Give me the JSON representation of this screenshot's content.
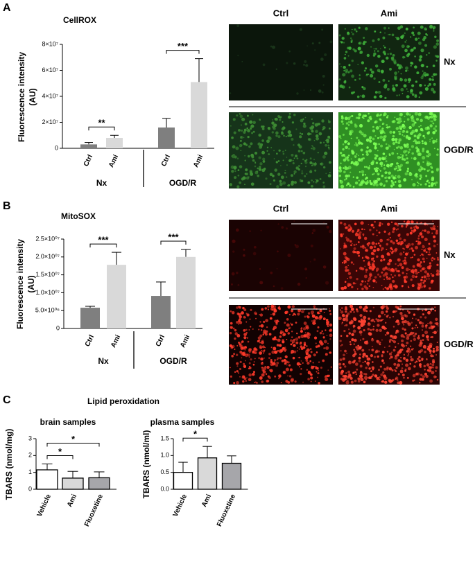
{
  "panel_labels": [
    "A",
    "B",
    "C"
  ],
  "images": [
    {
      "columns": [
        "Ctrl",
        "Ami"
      ],
      "rows": [
        "Nx",
        "OGD/R"
      ]
    },
    {
      "columns": [
        "Ctrl",
        "Ami"
      ],
      "rows": [
        "Nx",
        "OGD/R"
      ]
    }
  ],
  "section_title": "Lipid peroxidation",
  "chart_data": [
    {
      "type": "bar",
      "title": "CellROX",
      "ylabel": [
        "Fluorescence intensity",
        "(AU)"
      ],
      "categories": [
        "Ctrl",
        "Ami",
        "Ctrl",
        "Ami"
      ],
      "groups": [
        "Nx",
        "OGD/R"
      ],
      "values": [
        3000000,
        8000000,
        16000000,
        51000000
      ],
      "errors": [
        1500000,
        2000000,
        7000000,
        18000000
      ],
      "colors": [
        "#7f7f7f",
        "#d9d9d9",
        "#7f7f7f",
        "#d9d9d9"
      ],
      "ylim": [
        0,
        80000000
      ],
      "yticks": [
        0,
        {
          "value": 20000000,
          "label": "2×10⁷"
        },
        {
          "value": 40000000,
          "label": "4×10⁷"
        },
        {
          "value": 60000000,
          "label": "6×10⁷"
        },
        {
          "value": 80000000,
          "label": "8×10⁷"
        }
      ],
      "annotations": [
        {
          "text": "**",
          "bars": [
            0,
            1
          ]
        },
        {
          "text": "***",
          "bars": [
            2,
            3
          ]
        }
      ]
    },
    {
      "type": "bar",
      "title": "MitoSOX",
      "ylabel": [
        "Fluorescence intensity",
        "(AU)"
      ],
      "categories": [
        "Ctrl",
        "Ami",
        "Ctrl",
        "Ami"
      ],
      "groups": [
        "Nx",
        "OGD/R"
      ],
      "values": [
        5800000,
        17800000,
        9100000,
        20000000
      ],
      "errors": [
        400000,
        3500000,
        3900000,
        2100000
      ],
      "colors": [
        "#7f7f7f",
        "#d9d9d9",
        "#7f7f7f",
        "#d9d9d9"
      ],
      "ylim": [
        0,
        25000000
      ],
      "yticks": [
        0,
        {
          "value": 5000000,
          "label": "5.0×10⁰⁶"
        },
        {
          "value": 10000000,
          "label": "1.0×10⁰⁷"
        },
        {
          "value": 15000000,
          "label": "1.5×10⁰⁷"
        },
        {
          "value": 20000000,
          "label": "2.0×10⁰⁷"
        },
        {
          "value": 25000000,
          "label": "2.5×10⁰⁷"
        }
      ],
      "annotations": [
        {
          "text": "***",
          "bars": [
            0,
            1
          ]
        },
        {
          "text": "***",
          "bars": [
            2,
            3
          ]
        }
      ]
    },
    {
      "type": "bar",
      "title": "brain samples",
      "ylabel": [
        "TBARS (nmol/mg)"
      ],
      "categories": [
        "Vehicle",
        "Ami",
        "Fluoxetine"
      ],
      "values": [
        1.15,
        0.66,
        0.68
      ],
      "errors": [
        0.35,
        0.4,
        0.35
      ],
      "colors": [
        "#ffffff",
        "#d9d9d9",
        "#a6a6aa"
      ],
      "edgecolor": "#000000",
      "ylim": [
        0,
        3
      ],
      "yticks": [
        0,
        1,
        2,
        3
      ],
      "annotations": [
        {
          "text": "*",
          "bars": [
            0,
            1
          ]
        },
        {
          "text": "*",
          "bars": [
            0,
            2
          ]
        }
      ]
    },
    {
      "type": "bar",
      "title": "plasma samples",
      "ylabel": [
        "TBARS (nmol/ml)"
      ],
      "categories": [
        "Vehicle",
        "Ami",
        "Fluoxetine"
      ],
      "values": [
        0.5,
        0.93,
        0.77
      ],
      "errors": [
        0.3,
        0.34,
        0.22
      ],
      "colors": [
        "#ffffff",
        "#d9d9d9",
        "#a6a6aa"
      ],
      "edgecolor": "#000000",
      "ylim": [
        0,
        1.5
      ],
      "yticks": [
        {
          "value": 0,
          "label": "0.0"
        },
        0.5,
        {
          "value": 1,
          "label": "1.0"
        },
        1.5
      ],
      "annotations": [
        {
          "text": "*",
          "bars": [
            0,
            1
          ]
        }
      ]
    }
  ]
}
